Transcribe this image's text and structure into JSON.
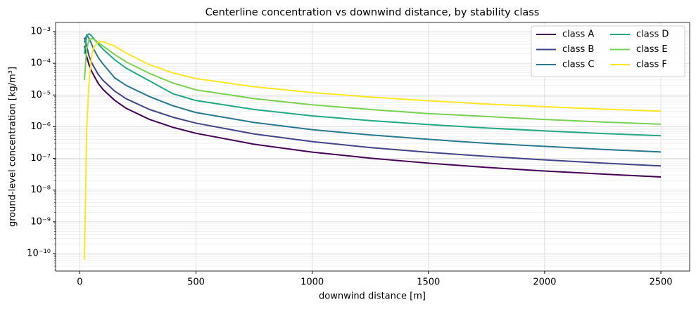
{
  "chart_data": {
    "type": "line",
    "title": "Centerline concentration vs downwind distance, by stability class",
    "xlabel": "downwind distance  [m]",
    "ylabel": "ground-level concentration [kg/m³]",
    "yscale": "log",
    "grid": true,
    "legend": "upper right",
    "legend_columns": 2,
    "xlim": [
      -104,
      2624
    ],
    "ylim": [
      2.8e-11,
      0.00194
    ],
    "xticks": [
      0,
      500,
      1000,
      1500,
      2000,
      2500
    ],
    "yticks": [
      {
        "value": 1e-10,
        "label": "10⁻¹⁰"
      },
      {
        "value": 1e-09,
        "label": "10⁻⁹"
      },
      {
        "value": 1e-08,
        "label": "10⁻⁸"
      },
      {
        "value": 1e-07,
        "label": "10⁻⁷"
      },
      {
        "value": 1e-06,
        "label": "10⁻⁶"
      },
      {
        "value": 1e-05,
        "label": "10⁻⁵"
      },
      {
        "value": 0.0001,
        "label": "10⁻⁴"
      },
      {
        "value": 0.001,
        "label": "10⁻³"
      }
    ],
    "yminorticks": [
      3e-11,
      4e-11,
      5e-11,
      6e-11,
      7e-11,
      8e-11,
      9e-11,
      2e-10,
      3e-10,
      4e-10,
      5e-10,
      6e-10,
      7e-10,
      8e-10,
      9e-10,
      2e-09,
      3e-09,
      4e-09,
      5e-09,
      6e-09,
      7e-09,
      8e-09,
      9e-09,
      2e-08,
      3e-08,
      4e-08,
      5e-08,
      6e-08,
      7e-08,
      8e-08,
      9e-08,
      2e-07,
      3e-07,
      4e-07,
      5e-07,
      6e-07,
      7e-07,
      8e-07,
      9e-07,
      2e-06,
      3e-06,
      4e-06,
      5e-06,
      6e-06,
      7e-06,
      8e-06,
      9e-06,
      2e-05,
      3e-05,
      4e-05,
      5e-05,
      6e-05,
      7e-05,
      8e-05,
      9e-05,
      0.0002,
      0.0003,
      0.0004,
      0.0005,
      0.0006,
      0.0007,
      0.0008,
      0.0009
    ],
    "x": [
      20,
      30,
      40,
      50,
      60,
      80,
      100,
      150,
      200,
      300,
      400,
      500,
      750,
      1000,
      1250,
      1500,
      1750,
      2000,
      2250,
      2500
    ],
    "series": [
      {
        "name": "class A",
        "color": "#440154",
        "values": [
          0.00035,
          0.00016,
          8.9e-05,
          5.8e-05,
          4.2e-05,
          2.3e-05,
          1.5e-05,
          6.8e-06,
          3.8e-06,
          1.7e-06,
          9.6e-07,
          6.2e-07,
          2.8e-07,
          1.58e-07,
          1.02e-07,
          7.1e-08,
          5.2e-08,
          4e-08,
          3.2e-08,
          2.6e-08
        ]
      },
      {
        "name": "class B",
        "color": "#414487",
        "values": [
          0.00065,
          0.00034,
          0.00017,
          0.00011,
          7.9e-05,
          4.4e-05,
          2.9e-05,
          1.33e-05,
          7.6e-06,
          3.5e-06,
          2e-06,
          1.3e-06,
          5.9e-07,
          3.4e-07,
          2.2e-07,
          1.56e-07,
          1.16e-07,
          9e-08,
          7.1e-08,
          5.8e-08
        ]
      },
      {
        "name": "class C",
        "color": "#2a788e",
        "values": [
          0.00045,
          0.0008,
          0.0006,
          0.00042,
          0.00028,
          0.00015,
          9.5e-05,
          3.5e-05,
          2e-05,
          8.9e-06,
          4.6e-06,
          2.8e-06,
          1.36e-06,
          8.1e-07,
          5.5e-07,
          4e-07,
          3e-07,
          2.4e-07,
          1.93e-07,
          1.6e-07
        ]
      },
      {
        "name": "class D",
        "color": "#22a884",
        "values": [
          0.0002,
          0.00075,
          0.00085,
          0.00075,
          0.0006,
          0.0004,
          0.00028,
          0.00013,
          7e-05,
          2.8e-05,
          1.1e-05,
          6.7e-06,
          3.5e-06,
          2.2e-06,
          1.56e-06,
          1.17e-06,
          9.1e-07,
          7.4e-07,
          6.1e-07,
          5.2e-07
        ]
      },
      {
        "name": "class E",
        "color": "#7ad151",
        "values": [
          3e-05,
          0.0003,
          0.00055,
          0.0006,
          0.00058,
          0.00045,
          0.00035,
          0.00019,
          0.00011,
          4.8e-05,
          2.4e-05,
          1.45e-05,
          7.7e-06,
          4.9e-06,
          3.5e-06,
          2.6e-06,
          2.1e-06,
          1.69e-06,
          1.41e-06,
          1.2e-06
        ]
      },
      {
        "name": "class F",
        "color": "#fde725",
        "values": [
          6.5e-11,
          1e-06,
          2.5e-05,
          0.00015,
          0.00032,
          0.00048,
          0.00048,
          0.00035,
          0.00021,
          9e-05,
          5e-05,
          3.3e-05,
          1.82e-05,
          1.19e-05,
          8.6e-06,
          6.6e-06,
          5.2e-06,
          4.3e-06,
          3.6e-06,
          3.1e-06
        ]
      }
    ]
  }
}
